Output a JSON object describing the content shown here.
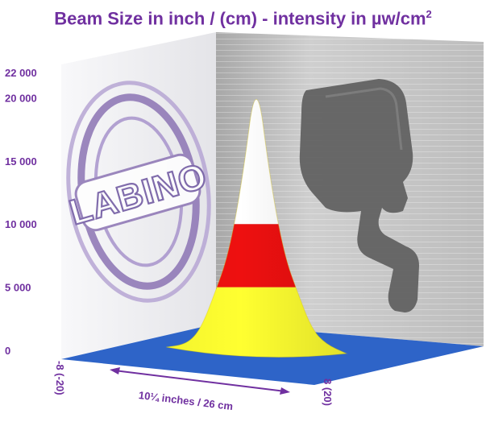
{
  "title": {
    "text": "Beam Size in inch / (cm) - intensity in µw/cm",
    "superscript": "2"
  },
  "colors": {
    "text": "#7030a0",
    "floor": "#2e64c8",
    "band_low": "#ffff30",
    "band_mid": "#ee1010",
    "band_high": "#ffffff",
    "wall_left": "#f2f2f5",
    "wall_right": "#c4c4c4",
    "shadow": "#606060",
    "logo": "#8c74b4"
  },
  "watermark": {
    "logo_text": "LABINO",
    "shadow_icon": "handheld-lamp-silhouette-icon"
  },
  "chart_data": {
    "type": "area",
    "title": "Beam Size in inch / (cm) - intensity in µw/cm²",
    "xlabel": "10¼ inches / 26 cm",
    "ylabel": "",
    "x_tick_labels": [
      "-8 (-20)",
      "8 (20)"
    ],
    "y_tick_labels": [
      "0",
      "5 000",
      "10 000",
      "15 000",
      "20 000",
      "22 000"
    ],
    "y_ticks": [
      0,
      5000,
      10000,
      15000,
      20000,
      22000
    ],
    "ylim": [
      0,
      22000
    ],
    "xlim_cm": [
      -20,
      20
    ],
    "peak": {
      "x_cm": 0,
      "y": 22000
    },
    "profile": {
      "x_cm": [
        -13,
        -10,
        -8,
        -6,
        -4,
        -2,
        0,
        2,
        4,
        6,
        8,
        10,
        13
      ],
      "y": [
        0,
        500,
        1700,
        4500,
        7600,
        13500,
        22000,
        13500,
        7600,
        4500,
        1700,
        500,
        0
      ]
    },
    "color_bands": [
      {
        "from": 0,
        "to": 5000,
        "color": "yellow"
      },
      {
        "from": 5000,
        "to": 10000,
        "color": "red"
      },
      {
        "from": 10000,
        "to": 22000,
        "color": "white"
      }
    ],
    "grid": false,
    "legend": "none"
  }
}
